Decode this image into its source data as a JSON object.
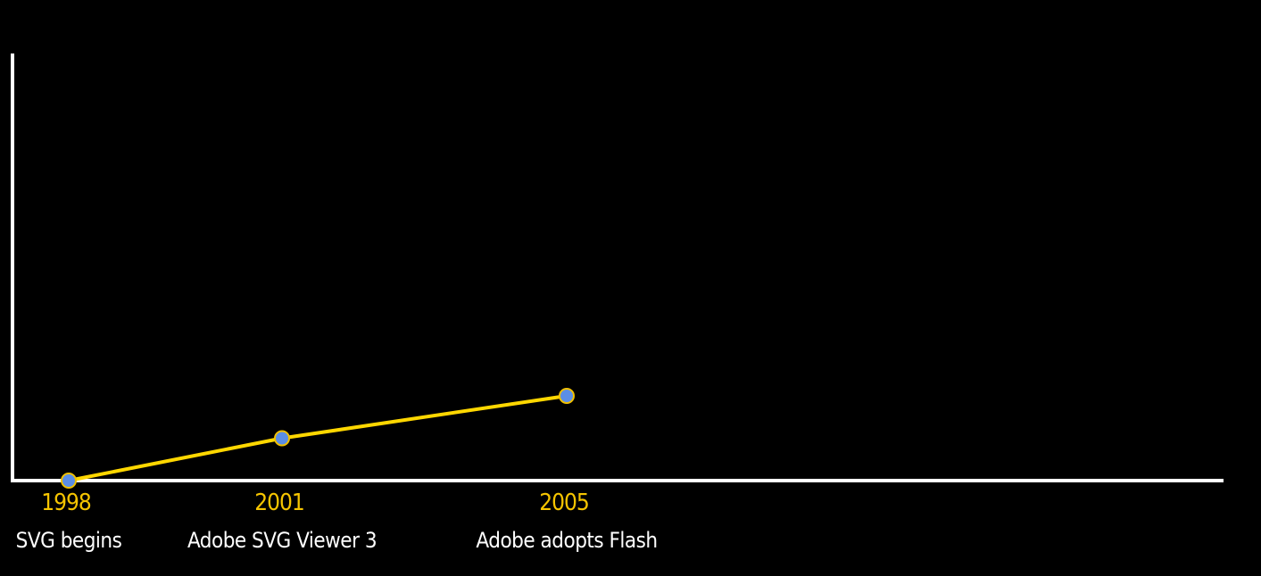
{
  "chart_data": {
    "type": "line",
    "title": "",
    "xlabel": "",
    "ylabel": "",
    "grid": false,
    "legend": "none",
    "colors": {
      "background": "#000000",
      "axis": "#ffffff",
      "line": "#ffd700",
      "marker_fill": "#5b8ee6",
      "marker_stroke": "#f0c000",
      "year_text": "#f5c400",
      "event_text": "#ffffff"
    },
    "points": [
      {
        "year": "1998",
        "event": "SVG begins",
        "value": 0
      },
      {
        "year": "2001",
        "event": "Adobe SVG Viewer 3",
        "value": 1
      },
      {
        "year": "2005",
        "event": "Adobe adopts Flash",
        "value": 2
      }
    ],
    "ylim": [
      0,
      10
    ]
  }
}
